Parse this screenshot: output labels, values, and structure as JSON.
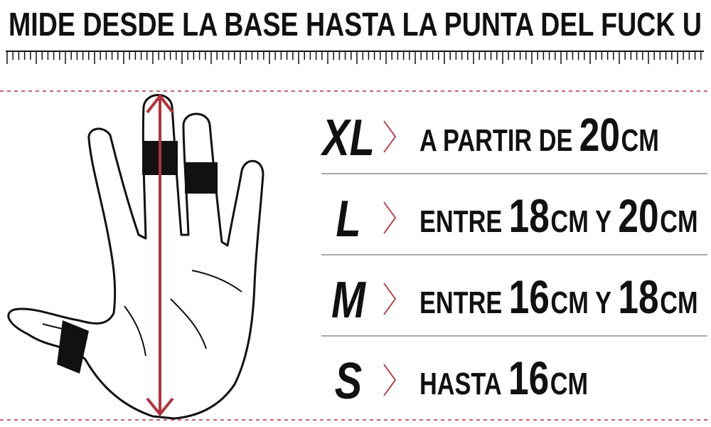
{
  "header": {
    "title": "MIDE DESDE LA BASE HASTA LA PUNTA DEL FUCK U"
  },
  "sizes": [
    {
      "size": "XL",
      "parts": [
        "A PARTIR DE",
        "20",
        "CM"
      ]
    },
    {
      "size": "L",
      "parts": [
        "ENTRE",
        "18",
        "CM",
        "Y",
        "20",
        "CM"
      ]
    },
    {
      "size": "M",
      "parts": [
        "ENTRE",
        "16",
        "CM",
        "Y",
        "18",
        "CM"
      ]
    },
    {
      "size": "S",
      "parts": [
        "HASTA",
        "16",
        "CM"
      ]
    }
  ]
}
